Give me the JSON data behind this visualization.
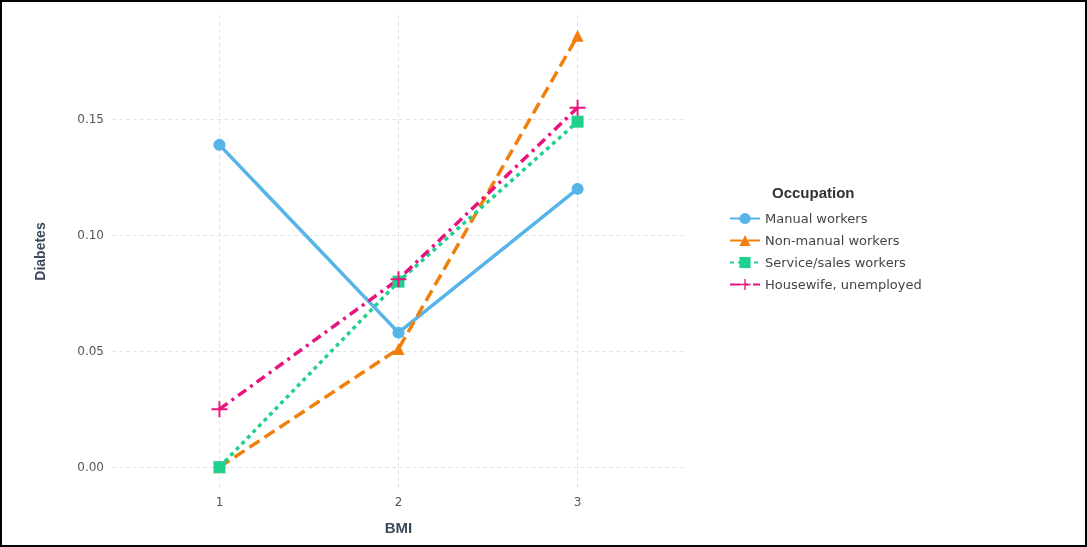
{
  "chart_data": {
    "type": "line",
    "xlabel": "BMI",
    "ylabel": "Diabetes",
    "legend_title": "Occupation",
    "legend": "right",
    "grid": true,
    "x": [
      1,
      2,
      3
    ],
    "xlim": [
      0.4,
      3.6
    ],
    "xticks": [
      1,
      2,
      3
    ],
    "ylim": [
      -0.009,
      0.195
    ],
    "yticks": [
      {
        "value": 0,
        "label": "0.00"
      },
      {
        "value": 0.05,
        "label": "0.05"
      },
      {
        "value": 0.1,
        "label": "0.10"
      },
      {
        "value": 0.15,
        "label": "0.15"
      }
    ],
    "series": [
      {
        "name": "Manual workers",
        "color": "#56b4e9",
        "marker": "circle",
        "line_style": "solid",
        "values": [
          0.139,
          0.058,
          0.12
        ]
      },
      {
        "name": "Non-manual workers",
        "color": "#f07f0c",
        "marker": "triangle",
        "line_style": "dashed",
        "values": [
          0,
          0.051,
          0.186
        ]
      },
      {
        "name": "Service/sales workers",
        "color": "#20d08e",
        "marker": "square",
        "line_style": "dotted",
        "values": [
          0,
          0.08,
          0.149
        ]
      },
      {
        "name": "Housewife, unemployed",
        "color": "#e8137c",
        "marker": "cross",
        "line_style": "dashed",
        "values": [
          0.025,
          0.081,
          0.155
        ]
      }
    ]
  }
}
